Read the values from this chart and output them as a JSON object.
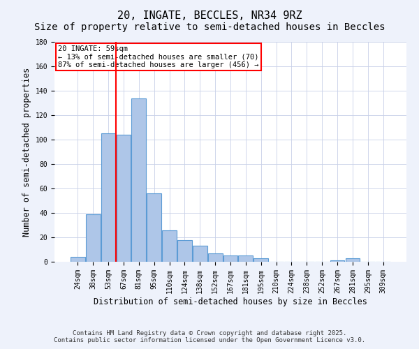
{
  "title": "20, INGATE, BECCLES, NR34 9RZ",
  "subtitle": "Size of property relative to semi-detached houses in Beccles",
  "xlabel": "Distribution of semi-detached houses by size in Beccles",
  "ylabel": "Number of semi-detached properties",
  "categories": [
    "24sqm",
    "38sqm",
    "53sqm",
    "67sqm",
    "81sqm",
    "95sqm",
    "110sqm",
    "124sqm",
    "138sqm",
    "152sqm",
    "167sqm",
    "181sqm",
    "195sqm",
    "210sqm",
    "224sqm",
    "238sqm",
    "252sqm",
    "267sqm",
    "281sqm",
    "295sqm",
    "309sqm"
  ],
  "values": [
    4,
    39,
    105,
    104,
    134,
    56,
    26,
    18,
    13,
    7,
    5,
    5,
    3,
    0,
    0,
    0,
    0,
    1,
    3,
    0,
    0
  ],
  "bar_color": "#aec6e8",
  "bar_edge_color": "#5b9bd5",
  "redline_x": 2.5,
  "redline_label": "20 INGATE: 59sqm",
  "annotation_line1": "← 13% of semi-detached houses are smaller (70)",
  "annotation_line2": "87% of semi-detached houses are larger (456) →",
  "ylim": [
    0,
    180
  ],
  "yticks": [
    0,
    20,
    40,
    60,
    80,
    100,
    120,
    140,
    160,
    180
  ],
  "footer1": "Contains HM Land Registry data © Crown copyright and database right 2025.",
  "footer2": "Contains public sector information licensed under the Open Government Licence v3.0.",
  "bg_color": "#eef2fb",
  "plot_bg_color": "#ffffff",
  "title_fontsize": 11,
  "axis_label_fontsize": 8.5,
  "tick_fontsize": 7,
  "footer_fontsize": 6.5,
  "annotation_fontsize": 7.5
}
